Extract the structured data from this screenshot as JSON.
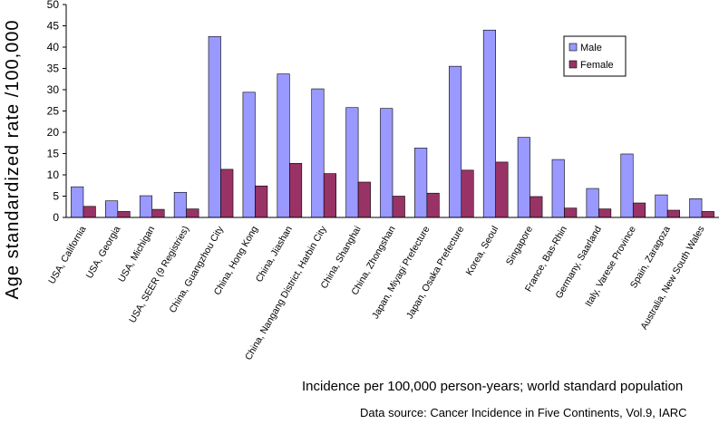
{
  "chart_data": {
    "type": "bar",
    "title": "",
    "ylabel": "Age standardized rate /100,000",
    "xlabel": "",
    "ylim": [
      0,
      50
    ],
    "yticks": [
      "0",
      "5",
      "10",
      "15",
      "20",
      "25",
      "30",
      "35",
      "40",
      "45",
      "50"
    ],
    "grid": false,
    "legend_position": "right",
    "categories": [
      "USA, California",
      "USA, Georgia",
      "USA, Michigan",
      "USA, SEER (9 Registries)",
      "China, Guangzhou City",
      "China, Hong Kong",
      "China, Jiashan",
      "China, Nangang District, Harbin City",
      "China, Shanghai",
      "China, Zhongshan",
      "Japan, Miyagi Prefecture",
      "Japan, Osaka Prefecture",
      "Korea, Seoul",
      "Singapore",
      "France, Bas-Rhin",
      "Germany, Saarland",
      "Italy, Varese Province",
      "Spain, Zaragoza",
      "Australia, New South Wales"
    ],
    "series": [
      {
        "name": "Male",
        "color": "#9999ff",
        "values": [
          7.2,
          3.9,
          5.1,
          5.9,
          42.5,
          29.4,
          33.7,
          30.2,
          25.8,
          25.6,
          16.3,
          35.5,
          44.0,
          18.8,
          13.6,
          6.8,
          14.9,
          5.3,
          4.4
        ]
      },
      {
        "name": "Female",
        "color": "#993366",
        "values": [
          2.6,
          1.4,
          1.9,
          2.0,
          11.3,
          7.4,
          12.7,
          10.3,
          8.3,
          5.0,
          5.7,
          11.1,
          13.0,
          4.9,
          2.2,
          2.0,
          3.4,
          1.7,
          1.4
        ]
      }
    ]
  },
  "notes": {
    "incidence": "Incidence per 100,000 person-years; world standard population",
    "source": "Data source: Cancer Incidence in Five Continents, Vol.9, IARC"
  }
}
